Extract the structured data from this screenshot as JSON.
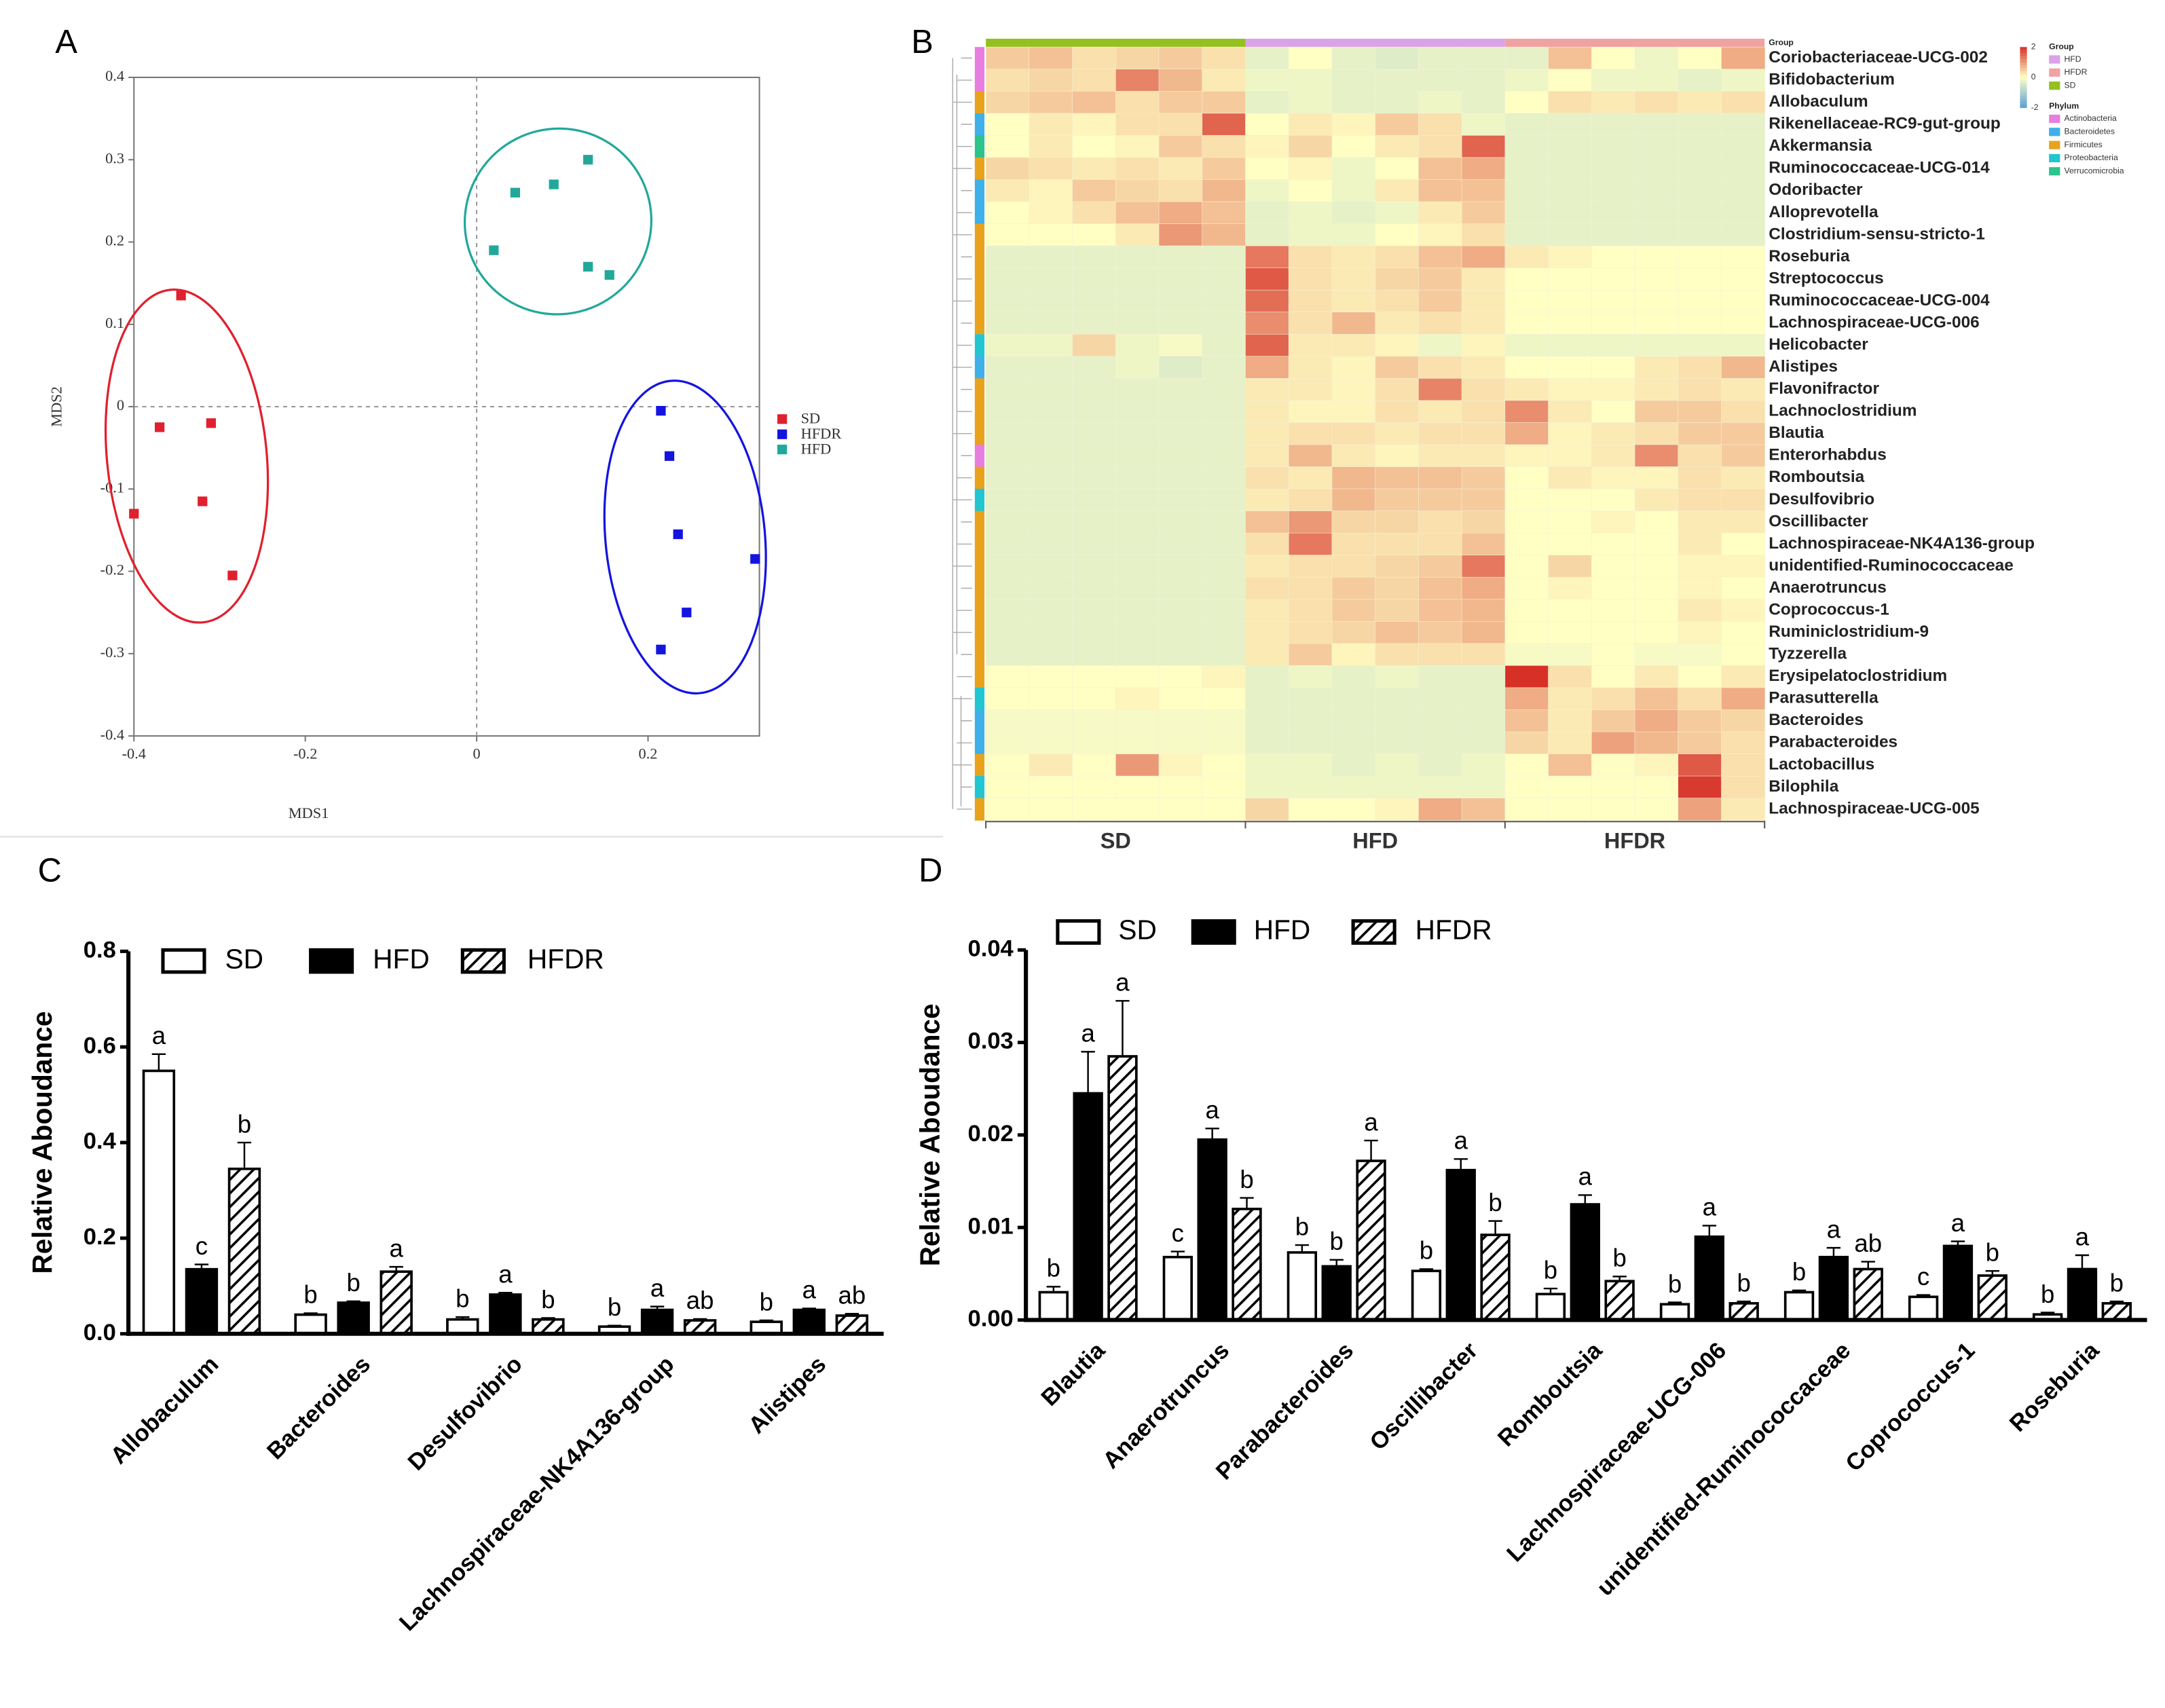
{
  "chart_data": [
    {
      "type": "scatter",
      "panel": "A",
      "x_label": "MDS1",
      "y_label": "MDS2",
      "xlim": [
        -0.4,
        0.33
      ],
      "ylim": [
        -0.4,
        0.4
      ],
      "xticks": [
        -0.4,
        -0.2,
        0,
        0.2
      ],
      "yticks": [
        -0.4,
        -0.3,
        -0.2,
        -0.1,
        0,
        0.1,
        0.2,
        0.3,
        0.4
      ],
      "zero_lines": true,
      "ellipses": true,
      "series": [
        {
          "name": "SD",
          "color": "#e0202e",
          "x": [
            -0.345,
            -0.37,
            -0.31,
            -0.32,
            -0.4,
            -0.285
          ],
          "y": [
            0.135,
            -0.025,
            -0.02,
            -0.115,
            -0.13,
            -0.205
          ]
        },
        {
          "name": "HFDR",
          "color": "#1414e0",
          "x": [
            0.215,
            0.225,
            0.235,
            0.325,
            0.245,
            0.215
          ],
          "y": [
            -0.005,
            -0.06,
            -0.155,
            -0.185,
            -0.25,
            -0.295
          ]
        },
        {
          "name": "HFD",
          "color": "#22a89a",
          "x": [
            0.13,
            0.045,
            0.09,
            0.02,
            0.13,
            0.155
          ],
          "y": [
            0.3,
            0.26,
            0.27,
            0.19,
            0.17,
            0.16
          ]
        }
      ]
    },
    {
      "type": "heatmap",
      "panel": "B",
      "group_title": "Group",
      "phylum_title": "Phylum",
      "zlim": [
        -2,
        2
      ],
      "zticks": [
        2,
        0,
        -2
      ],
      "groups": [
        {
          "name": "SD",
          "color": "#94c11f"
        },
        {
          "name": "HFD",
          "color": "#dba2e8"
        },
        {
          "name": "HFDR",
          "color": "#f0a2a2"
        }
      ],
      "phyla": [
        {
          "name": "Actinobacteria",
          "color": "#e77ee0"
        },
        {
          "name": "Bacteroidetes",
          "color": "#3fb0e8"
        },
        {
          "name": "Firmicutes",
          "color": "#e8a21c"
        },
        {
          "name": "Proteobacteria",
          "color": "#22c6d0"
        },
        {
          "name": "Verrucomicrobia",
          "color": "#2cc48c"
        }
      ],
      "rows": [
        "Coriobacteriaceae-UCG-002",
        "Bifidobacterium",
        "Allobaculum",
        "Rikenellaceae-RC9-gut-group",
        "Akkermansia",
        "Ruminococcaceae-UCG-014",
        "Odoribacter",
        "Alloprevotella",
        "Clostridium-sensu-stricto-1",
        "Roseburia",
        "Streptococcus",
        "Ruminococcaceae-UCG-004",
        "Lachnospiraceae-UCG-006",
        "Helicobacter",
        "Alistipes",
        "Flavonifractor",
        "Lachnoclostridium",
        "Blautia",
        "Enterorhabdus",
        "Romboutsia",
        "Desulfovibrio",
        "Oscillibacter",
        "Lachnospiraceae-NK4A136-group",
        "unidentified-Ruminococcaceae",
        "Anaerotruncus",
        "Coprococcus-1",
        "Ruminiclostridium-9",
        "Tyzzerella",
        "Erysipelatoclostridium",
        "Parasutterella",
        "Bacteroides",
        "Parabacteroides",
        "Lactobacillus",
        "Bilophila",
        "Lachnospiraceae-UCG-005"
      ],
      "row_phylum": [
        "Actinobacteria",
        "Actinobacteria",
        "Firmicutes",
        "Bacteroidetes",
        "Verrucomicrobia",
        "Firmicutes",
        "Bacteroidetes",
        "Bacteroidetes",
        "Firmicutes",
        "Firmicutes",
        "Firmicutes",
        "Firmicutes",
        "Firmicutes",
        "Proteobacteria",
        "Bacteroidetes",
        "Firmicutes",
        "Firmicutes",
        "Firmicutes",
        "Actinobacteria",
        "Firmicutes",
        "Proteobacteria",
        "Firmicutes",
        "Firmicutes",
        "Firmicutes",
        "Firmicutes",
        "Firmicutes",
        "Firmicutes",
        "Firmicutes",
        "Firmicutes",
        "Proteobacteria",
        "Bacteroidetes",
        "Bacteroidetes",
        "Firmicutes",
        "Proteobacteria",
        "Firmicutes"
      ],
      "values": [
        [
          0.5,
          0.6,
          0.3,
          0.4,
          0.5,
          0.3,
          -0.3,
          0,
          -0.3,
          -0.4,
          -0.3,
          -0.3,
          -0.3,
          0.6,
          0,
          -0.2,
          0,
          0.8
        ],
        [
          0.3,
          0.4,
          0.3,
          1.2,
          0.7,
          0.2,
          -0.2,
          -0.2,
          -0.3,
          -0.3,
          -0.3,
          -0.3,
          -0.2,
          0,
          -0.2,
          -0.2,
          -0.3,
          -0.2
        ],
        [
          0.4,
          0.5,
          0.6,
          0.3,
          0.5,
          0.5,
          -0.3,
          -0.2,
          -0.3,
          -0.3,
          -0.2,
          -0.3,
          0,
          0.3,
          0.2,
          0.3,
          0.2,
          0.3
        ],
        [
          0,
          0.2,
          0.1,
          0.3,
          0.3,
          1.5,
          0,
          0.2,
          0.1,
          0.5,
          0.3,
          -0.2,
          -0.3,
          -0.3,
          -0.3,
          -0.3,
          -0.3,
          -0.3
        ],
        [
          0,
          0.2,
          0,
          0.1,
          0.5,
          0.3,
          0.1,
          0.4,
          0,
          0.2,
          0.3,
          1.5,
          -0.3,
          -0.3,
          -0.3,
          -0.3,
          -0.3,
          -0.3
        ],
        [
          0.4,
          0.3,
          0.2,
          0.3,
          0.2,
          0.5,
          0,
          0.1,
          -0.2,
          0,
          0.6,
          0.8,
          -0.3,
          -0.3,
          -0.3,
          -0.3,
          -0.3,
          -0.3
        ],
        [
          0.2,
          0.1,
          0.5,
          0.4,
          0.3,
          0.7,
          -0.2,
          0,
          -0.2,
          0.2,
          0.6,
          0.6,
          -0.3,
          -0.3,
          -0.3,
          -0.3,
          -0.3,
          -0.3
        ],
        [
          0,
          0.1,
          0.3,
          0.6,
          0.8,
          0.6,
          -0.3,
          -0.2,
          -0.3,
          -0.2,
          0.2,
          0.5,
          -0.3,
          -0.3,
          -0.3,
          -0.3,
          -0.3,
          -0.3
        ],
        [
          0,
          0,
          0,
          0.2,
          1,
          0.7,
          -0.3,
          -0.2,
          -0.2,
          0,
          0.1,
          0.3,
          -0.3,
          -0.3,
          -0.3,
          -0.3,
          -0.3,
          -0.3
        ],
        [
          -0.3,
          -0.3,
          -0.3,
          -0.3,
          -0.3,
          -0.3,
          1.3,
          0.3,
          0.2,
          0.3,
          0.6,
          0.8,
          0.2,
          0.1,
          0,
          0,
          0,
          0
        ],
        [
          -0.3,
          -0.3,
          -0.3,
          -0.3,
          -0.3,
          -0.3,
          1.6,
          0.3,
          0.2,
          0.4,
          0.5,
          0.2,
          0,
          0,
          0,
          0,
          0,
          0
        ],
        [
          -0.3,
          -0.3,
          -0.3,
          -0.3,
          -0.3,
          -0.3,
          1.4,
          0.3,
          0.2,
          0.3,
          0.5,
          0.2,
          0,
          0,
          0,
          0,
          0,
          0
        ],
        [
          -0.3,
          -0.3,
          -0.3,
          -0.3,
          -0.3,
          -0.3,
          1.1,
          0.3,
          0.7,
          0.2,
          0.3,
          0.2,
          0,
          0,
          0,
          0,
          0,
          0
        ],
        [
          -0.2,
          -0.2,
          0.4,
          -0.2,
          -0.1,
          -0.3,
          1.5,
          0.2,
          0.2,
          0.1,
          -0.2,
          0.1,
          -0.2,
          -0.2,
          -0.2,
          -0.2,
          -0.2,
          -0.2
        ],
        [
          -0.3,
          -0.3,
          -0.3,
          -0.2,
          -0.4,
          -0.3,
          0.8,
          0.2,
          0.1,
          0.5,
          0.3,
          0.2,
          0,
          0,
          0,
          0.2,
          0.3,
          0.7
        ],
        [
          -0.3,
          -0.3,
          -0.3,
          -0.3,
          -0.3,
          -0.3,
          0.2,
          0.2,
          0.1,
          0.3,
          1.2,
          0.3,
          0.2,
          0.1,
          0.1,
          0.2,
          0.3,
          0.2
        ],
        [
          -0.3,
          -0.3,
          -0.3,
          -0.3,
          -0.3,
          -0.3,
          0.2,
          0.1,
          0.1,
          0.3,
          0.2,
          0.3,
          1.1,
          0.2,
          0,
          0.5,
          0.5,
          0.3
        ],
        [
          -0.3,
          -0.3,
          -0.3,
          -0.3,
          -0.3,
          -0.3,
          0.2,
          0.3,
          0.3,
          0.2,
          0.3,
          0.3,
          0.8,
          0.1,
          0.2,
          0.3,
          0.5,
          0.5
        ],
        [
          -0.3,
          -0.3,
          -0.3,
          -0.3,
          -0.3,
          -0.3,
          0.2,
          0.7,
          0.2,
          0.1,
          0.2,
          0.2,
          0.1,
          0.1,
          0.2,
          1.1,
          0.3,
          0.5
        ],
        [
          -0.3,
          -0.3,
          -0.3,
          -0.3,
          -0.3,
          -0.3,
          0.3,
          0.2,
          0.7,
          0.6,
          0.6,
          0.5,
          0,
          0.2,
          0.1,
          0.1,
          0.3,
          0.2
        ],
        [
          -0.3,
          -0.3,
          -0.3,
          -0.3,
          -0.3,
          -0.3,
          0.2,
          0.3,
          0.7,
          0.5,
          0.5,
          0.5,
          0,
          0,
          0,
          0.2,
          0.3,
          0.3
        ],
        [
          -0.3,
          -0.3,
          -0.3,
          -0.3,
          -0.3,
          -0.3,
          0.6,
          1,
          0.4,
          0.4,
          0.3,
          0.4,
          0,
          0,
          0.1,
          0,
          0.2,
          0.2
        ],
        [
          -0.3,
          -0.3,
          -0.3,
          -0.3,
          -0.3,
          -0.3,
          0.3,
          1.3,
          0.3,
          0.3,
          0.3,
          0.6,
          0,
          0,
          0,
          0,
          0.2,
          0
        ],
        [
          -0.3,
          -0.3,
          -0.3,
          -0.3,
          -0.3,
          -0.3,
          0.2,
          0.3,
          0.3,
          0.4,
          0.5,
          1.3,
          0,
          0.4,
          0,
          0,
          0.1,
          0.1
        ],
        [
          -0.3,
          -0.3,
          -0.3,
          -0.3,
          -0.3,
          -0.3,
          0.3,
          0.3,
          0.5,
          0.4,
          0.6,
          0.8,
          0,
          0.1,
          0,
          0,
          0.1,
          0
        ],
        [
          -0.3,
          -0.3,
          -0.3,
          -0.3,
          -0.3,
          -0.3,
          0.2,
          0.3,
          0.5,
          0.4,
          0.6,
          0.7,
          0,
          0,
          0,
          0,
          0.2,
          0.1
        ],
        [
          -0.3,
          -0.3,
          -0.3,
          -0.3,
          -0.3,
          -0.3,
          0.2,
          0.3,
          0.4,
          0.6,
          0.5,
          0.7,
          0,
          0,
          0,
          0,
          0.1,
          0
        ],
        [
          -0.3,
          -0.3,
          -0.3,
          -0.3,
          -0.3,
          -0.3,
          0.2,
          0.5,
          0.1,
          0.3,
          0.3,
          0.3,
          -0.1,
          -0.1,
          0,
          -0.1,
          -0.1,
          0
        ],
        [
          0,
          0,
          0,
          0,
          0,
          0.1,
          -0.3,
          -0.2,
          -0.3,
          -0.2,
          -0.3,
          -0.3,
          2,
          0.3,
          0,
          0.2,
          0,
          0.2
        ],
        [
          0,
          0,
          0,
          0.1,
          0,
          0,
          -0.3,
          -0.3,
          -0.3,
          -0.3,
          -0.3,
          -0.3,
          0.8,
          0.2,
          0.3,
          0.6,
          0.3,
          0.8
        ],
        [
          -0.1,
          -0.1,
          -0.1,
          -0.1,
          -0.1,
          -0.1,
          -0.3,
          -0.3,
          -0.3,
          -0.3,
          -0.3,
          -0.3,
          0.6,
          0.2,
          0.5,
          0.8,
          0.5,
          0.4
        ],
        [
          -0.1,
          -0.1,
          -0.1,
          -0.1,
          -0.1,
          -0.1,
          -0.3,
          -0.3,
          -0.3,
          -0.3,
          -0.3,
          -0.3,
          0.4,
          0.2,
          0.9,
          0.7,
          0.5,
          0.3
        ],
        [
          0,
          0.2,
          0,
          1,
          0.1,
          0,
          -0.2,
          -0.2,
          -0.3,
          -0.2,
          -0.3,
          -0.2,
          0,
          0.6,
          0,
          0.1,
          1.6,
          0.3
        ],
        [
          0,
          0,
          0,
          0,
          0,
          0,
          -0.2,
          -0.2,
          -0.2,
          -0.2,
          -0.2,
          -0.2,
          0,
          0,
          0,
          0,
          1.9,
          0.3
        ],
        [
          0,
          0,
          0,
          0,
          0,
          0,
          0.4,
          0,
          0,
          0.1,
          0.8,
          0.6,
          0,
          0,
          0,
          0,
          0.9,
          0.2
        ]
      ]
    },
    {
      "type": "bar",
      "panel": "C",
      "y_label": "Relative Aboudance",
      "categories": [
        "Allobaculum",
        "Bacteroides",
        "Desulfovibrio",
        "Lachnospiraceae-NK4A136-group",
        "Alistipes"
      ],
      "ylim": [
        0,
        0.8
      ],
      "yticks": [
        {
          "value": 0,
          "label": "0.0"
        },
        0.2,
        0.4,
        0.6,
        0.8
      ],
      "series": [
        {
          "name": "SD",
          "pattern": "open",
          "values": [
            0.55,
            0.04,
            0.03,
            0.015,
            0.025
          ],
          "errors": [
            0.035,
            0.003,
            0.005,
            0.002,
            0.003
          ],
          "letters": [
            "a",
            "b",
            "b",
            "b",
            "b"
          ]
        },
        {
          "name": "HFD",
          "pattern": "solid",
          "values": [
            0.135,
            0.065,
            0.082,
            0.05,
            0.05
          ],
          "errors": [
            0.01,
            0.003,
            0.004,
            0.007,
            0.003
          ],
          "letters": [
            "c",
            "b",
            "a",
            "a",
            "a"
          ]
        },
        {
          "name": "HFDR",
          "pattern": "hatch",
          "values": [
            0.345,
            0.13,
            0.03,
            0.028,
            0.038
          ],
          "errors": [
            0.055,
            0.01,
            0.003,
            0.003,
            0.004
          ],
          "letters": [
            "b",
            "a",
            "b",
            "ab",
            "ab"
          ]
        }
      ]
    },
    {
      "type": "bar",
      "panel": "D",
      "y_label": "Relative Aboudance",
      "categories": [
        "Blautia",
        "Anaerotruncus",
        "Parabacteroides",
        "Oscillibacter",
        "Romboutsia",
        "Lachnospiraceae-UCG-006",
        "unidentified-Ruminococcaceae",
        "Coprococcus-1",
        "Roseburia"
      ],
      "ylim": [
        0,
        0.04
      ],
      "yticks": [
        {
          "value": 0,
          "label": "0.00"
        },
        {
          "value": 0.01,
          "label": "0.01"
        },
        {
          "value": 0.02,
          "label": "0.02"
        },
        {
          "value": 0.03,
          "label": "0.03"
        },
        {
          "value": 0.04,
          "label": "0.04"
        }
      ],
      "series": [
        {
          "name": "SD",
          "pattern": "open",
          "values": [
            0.003,
            0.0068,
            0.0073,
            0.0053,
            0.0028,
            0.0017,
            0.003,
            0.0025,
            0.0006
          ],
          "errors": [
            0.0006,
            0.0006,
            0.0008,
            0.0002,
            0.0006,
            0.0002,
            0.0002,
            0.0002,
            0.0002
          ],
          "letters": [
            "b",
            "c",
            "b",
            "b",
            "b",
            "b",
            "b",
            "c",
            "b"
          ]
        },
        {
          "name": "HFD",
          "pattern": "solid",
          "values": [
            0.0245,
            0.0195,
            0.0058,
            0.0162,
            0.0125,
            0.009,
            0.0068,
            0.008,
            0.0055
          ],
          "errors": [
            0.0045,
            0.0012,
            0.0007,
            0.0012,
            0.001,
            0.0012,
            0.001,
            0.0005,
            0.0015
          ],
          "letters": [
            "a",
            "a",
            "b",
            "a",
            "a",
            "a",
            "a",
            "a",
            "a"
          ]
        },
        {
          "name": "HFDR",
          "pattern": "hatch",
          "values": [
            0.0285,
            0.012,
            0.0172,
            0.0092,
            0.0042,
            0.0018,
            0.0055,
            0.0048,
            0.0018
          ],
          "errors": [
            0.006,
            0.0012,
            0.0022,
            0.0015,
            0.0005,
            0.0002,
            0.0008,
            0.0005,
            0.0002
          ],
          "letters": [
            "a",
            "b",
            "a",
            "b",
            "b",
            "b",
            "ab",
            "b",
            "b"
          ]
        }
      ]
    }
  ]
}
